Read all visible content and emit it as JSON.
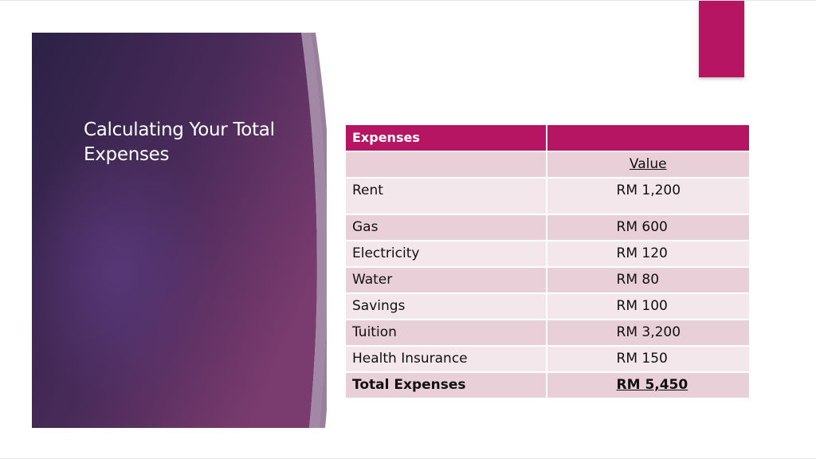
{
  "slide": {
    "title": "Calculating Your Total Expenses",
    "colors": {
      "accent": "#b51563",
      "panel_dark": "#2b2145",
      "panel_mid": "#5a2d62",
      "panel_light": "#7a3b6e",
      "header_row": "#b51563",
      "row_odd": "#e8cfd8",
      "row_even": "#f3e7ec"
    }
  },
  "table": {
    "headers": [
      "Expenses",
      ""
    ],
    "subheader": [
      "",
      "Value"
    ],
    "rows": [
      {
        "label": "Rent",
        "value": "RM 1,200"
      },
      {
        "label": "Gas",
        "value": "RM 600"
      },
      {
        "label": "Electricity",
        "value": "RM 120"
      },
      {
        "label": "Water",
        "value": "RM 80"
      },
      {
        "label": "Savings",
        "value": "RM 100"
      },
      {
        "label": "Tuition",
        "value": "RM 3,200"
      },
      {
        "label": "Health Insurance",
        "value": "RM 150"
      }
    ],
    "total": {
      "label": "Total Expenses",
      "value": "RM 5,450"
    }
  }
}
